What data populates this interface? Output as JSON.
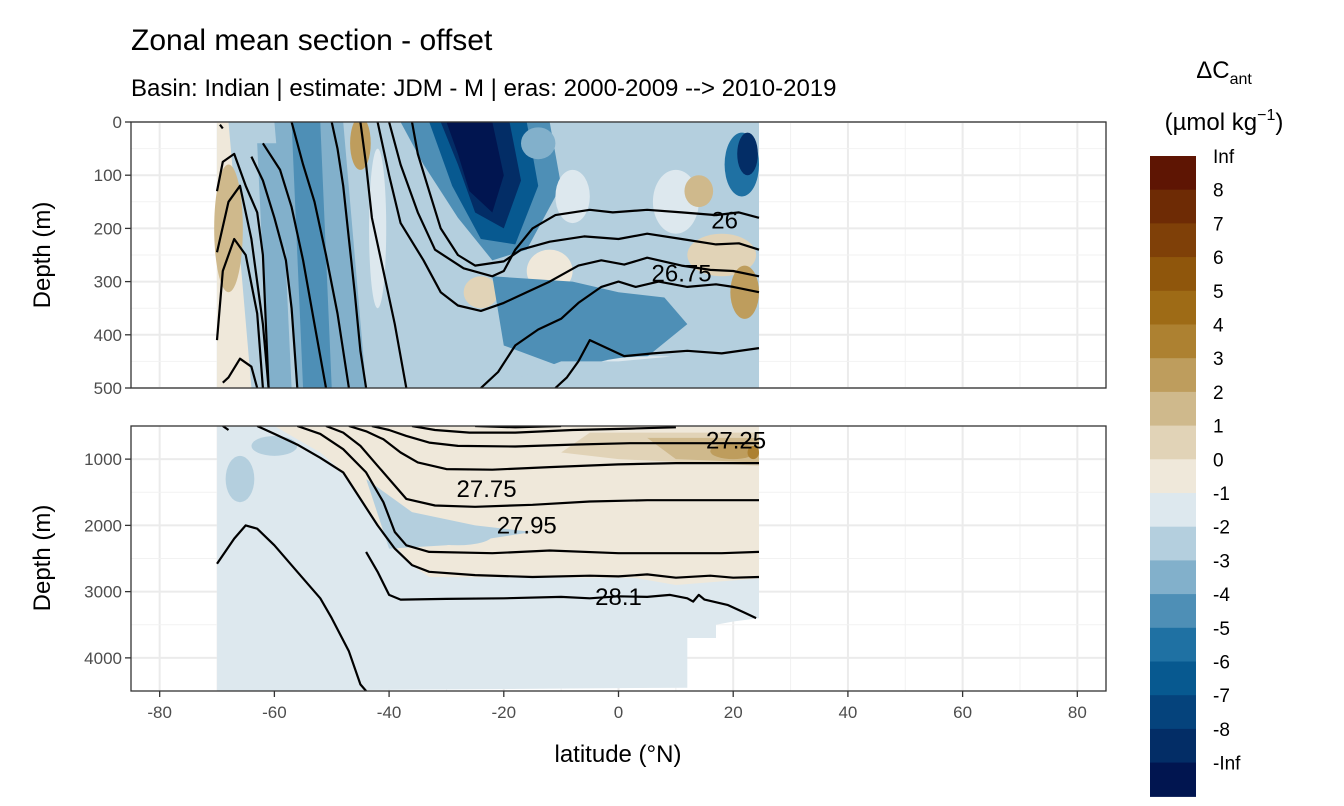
{
  "chart_data": {
    "type": "heatmap",
    "title": "Zonal mean section - offset",
    "subtitle": "Basin: Indian | estimate: JDM - M | eras: 2000-2009 --> 2010-2019",
    "xlabel": "latitude (°N)",
    "ylabel": "Depth (m)",
    "xlim": [
      -85,
      85
    ],
    "x_ticks": [
      -80,
      -60,
      -40,
      -20,
      0,
      20,
      40,
      60,
      80
    ],
    "x_tick_labels": [
      "-80",
      "-60",
      "-40",
      "-20",
      "0",
      "20",
      "40",
      "60",
      "80"
    ],
    "data_extent_lat": [
      -70,
      24.5
    ],
    "panels": [
      {
        "name": "upper",
        "ylim": [
          500,
          0
        ],
        "y_ticks": [
          0,
          100,
          200,
          300,
          400,
          500
        ],
        "y_tick_labels": [
          "0",
          "100",
          "200",
          "300",
          "400",
          "500"
        ],
        "contour_labels": [
          {
            "text": "26",
            "lat": 18.5,
            "depth": 185
          },
          {
            "text": "26.75",
            "lat": 11,
            "depth": 285
          }
        ],
        "isopycnals": [
          [
            [
              -69.5,
              5
            ],
            [
              -69,
              12
            ]
          ],
          [
            [
              -70,
              130
            ],
            [
              -69,
              75
            ],
            [
              -67,
              60
            ],
            [
              -65,
              120
            ],
            [
              -63,
              170
            ],
            [
              -62,
              250
            ],
            [
              -61,
              500
            ]
          ],
          [
            [
              -70,
              245
            ],
            [
              -68,
              150
            ],
            [
              -66,
              120
            ],
            [
              -64,
              220
            ],
            [
              -62,
              380
            ],
            [
              -61,
              500
            ]
          ],
          [
            [
              -70,
              410
            ],
            [
              -69,
              280
            ],
            [
              -67,
              220
            ],
            [
              -65,
              250
            ],
            [
              -63,
              360
            ],
            [
              -62,
              500
            ]
          ],
          [
            [
              -69,
              490
            ],
            [
              -68,
              480
            ],
            [
              -66,
              445
            ],
            [
              -64,
              460
            ],
            [
              -63,
              500
            ]
          ],
          [
            [
              -64,
              65
            ],
            [
              -62,
              110
            ],
            [
              -60,
              180
            ],
            [
              -58,
              260
            ],
            [
              -57,
              350
            ],
            [
              -56,
              500
            ]
          ],
          [
            [
              -62,
              40
            ],
            [
              -59,
              90
            ],
            [
              -57,
              160
            ],
            [
              -55,
              260
            ],
            [
              -53,
              380
            ],
            [
              -51,
              500
            ]
          ],
          [
            [
              -57,
              0
            ],
            [
              -55,
              80
            ],
            [
              -53,
              150
            ],
            [
              -51,
              250
            ],
            [
              -49,
              360
            ],
            [
              -47,
              500
            ]
          ],
          [
            [
              -50,
              0
            ],
            [
              -49,
              50
            ],
            [
              -48,
              120
            ],
            [
              -47,
              220
            ],
            [
              -46,
              320
            ],
            [
              -45,
              430
            ],
            [
              -44,
              500
            ]
          ],
          [
            [
              -45,
              0
            ],
            [
              -44,
              80
            ],
            [
              -43,
              180
            ],
            [
              -41,
              280
            ],
            [
              -39,
              380
            ],
            [
              -37,
              500
            ]
          ],
          [
            [
              -40,
              0
            ],
            [
              -38,
              80
            ],
            [
              -35,
              170
            ],
            [
              -32,
              240
            ],
            [
              -27,
              275
            ],
            [
              -22,
              290
            ],
            [
              -20,
              280
            ],
            [
              -18,
              240
            ],
            [
              -15,
              200
            ],
            [
              -11,
              175
            ],
            [
              -5,
              165
            ],
            [
              -1,
              170
            ],
            [
              5,
              165
            ],
            [
              11,
              170
            ],
            [
              17,
              175
            ],
            [
              21,
              170
            ],
            [
              24.5,
              180
            ]
          ],
          [
            [
              -36,
              0
            ],
            [
              -35,
              60
            ],
            [
              -33,
              130
            ],
            [
              -31,
              200
            ],
            [
              -28,
              250
            ],
            [
              -25,
              270
            ],
            [
              -20,
              262
            ],
            [
              -17,
              240
            ],
            [
              -12,
              225
            ],
            [
              -6,
              215
            ],
            [
              0,
              220
            ],
            [
              5,
              210
            ],
            [
              11,
              220
            ],
            [
              17,
              230
            ],
            [
              21,
              228
            ],
            [
              24.5,
              240
            ]
          ],
          [
            [
              -42,
              0
            ],
            [
              -40,
              100
            ],
            [
              -38,
              190
            ],
            [
              -34,
              260
            ],
            [
              -31,
              320
            ],
            [
              -28,
              345
            ],
            [
              -24,
              355
            ],
            [
              -20,
              340
            ],
            [
              -16,
              320
            ],
            [
              -12,
              300
            ],
            [
              -7,
              270
            ],
            [
              -3,
              260
            ],
            [
              1,
              268
            ],
            [
              5,
              255
            ],
            [
              11,
              270
            ],
            [
              16,
              278
            ],
            [
              20,
              280
            ],
            [
              24.5,
              290
            ]
          ],
          [
            [
              -24,
              500
            ],
            [
              -21,
              470
            ],
            [
              -18,
              420
            ],
            [
              -14,
              390
            ],
            [
              -10,
              370
            ],
            [
              -7,
              340
            ],
            [
              -3,
              310
            ],
            [
              0,
              300
            ],
            [
              3,
              310
            ],
            [
              7,
              300
            ],
            [
              12,
              310
            ],
            [
              17,
              305
            ],
            [
              20,
              310
            ],
            [
              24.5,
              320
            ]
          ],
          [
            [
              -11,
              500
            ],
            [
              -9,
              480
            ],
            [
              -7,
              450
            ],
            [
              -5,
              410
            ],
            [
              -2,
              425
            ],
            [
              1,
              440
            ],
            [
              6,
              435
            ],
            [
              12,
              430
            ],
            [
              18,
              435
            ],
            [
              24.5,
              425
            ]
          ]
        ]
      },
      {
        "name": "lower",
        "ylim": [
          4500,
          500
        ],
        "y_ticks": [
          1000,
          2000,
          3000,
          4000
        ],
        "y_tick_labels": [
          "1000",
          "2000",
          "3000",
          "4000"
        ],
        "contour_labels": [
          {
            "text": "27.25",
            "lat": 20.5,
            "depth": 720
          },
          {
            "text": "27.75",
            "lat": -23,
            "depth": 1450
          },
          {
            "text": "27.95",
            "lat": -16,
            "depth": 2000
          },
          {
            "text": "28.1",
            "lat": 0,
            "depth": 3080
          }
        ],
        "isopycnals": [
          [
            [
              -69,
              500
            ],
            [
              -68,
              560
            ]
          ],
          [
            [
              -63,
              500
            ],
            [
              -60,
              620
            ],
            [
              -56,
              780
            ],
            [
              -52,
              980
            ],
            [
              -48,
              1200
            ],
            [
              -45,
              1600
            ],
            [
              -42,
              2000
            ],
            [
              -39,
              2350
            ],
            [
              -36,
              2600
            ],
            [
              -33,
              2700
            ],
            [
              -25,
              2750
            ],
            [
              -15,
              2780
            ],
            [
              -5,
              2760
            ],
            [
              0,
              2770
            ],
            [
              5,
              2740
            ],
            [
              10,
              2790
            ],
            [
              16,
              2760
            ],
            [
              20,
              2790
            ],
            [
              24.5,
              2780
            ]
          ],
          [
            [
              -56,
              500
            ],
            [
              -52,
              620
            ],
            [
              -48,
              850
            ],
            [
              -44,
              1200
            ],
            [
              -41,
              1650
            ],
            [
              -39,
              2100
            ],
            [
              -37,
              2300
            ],
            [
              -33,
              2400
            ],
            [
              -22,
              2420
            ],
            [
              -12,
              2380
            ],
            [
              0,
              2420
            ],
            [
              10,
              2420
            ],
            [
              18,
              2420
            ],
            [
              24.5,
              2400
            ]
          ],
          [
            [
              -51,
              500
            ],
            [
              -48,
              600
            ],
            [
              -45,
              800
            ],
            [
              -42,
              1100
            ],
            [
              -39,
              1400
            ],
            [
              -37,
              1600
            ],
            [
              -32,
              1700
            ],
            [
              -25,
              1720
            ],
            [
              -15,
              1690
            ],
            [
              -5,
              1640
            ],
            [
              5,
              1620
            ],
            [
              15,
              1620
            ],
            [
              24.5,
              1620
            ]
          ],
          [
            [
              -47,
              500
            ],
            [
              -44,
              580
            ],
            [
              -41,
              700
            ],
            [
              -38,
              900
            ],
            [
              -35,
              1050
            ],
            [
              -30,
              1150
            ],
            [
              -22,
              1160
            ],
            [
              -12,
              1120
            ],
            [
              0,
              1080
            ],
            [
              10,
              1060
            ],
            [
              20,
              1060
            ],
            [
              24.5,
              1060
            ]
          ],
          [
            [
              -43,
              500
            ],
            [
              -40,
              560
            ],
            [
              -37,
              650
            ],
            [
              -33,
              750
            ],
            [
              -28,
              800
            ],
            [
              -18,
              810
            ],
            [
              -8,
              780
            ],
            [
              2,
              760
            ],
            [
              12,
              760
            ],
            [
              24.5,
              760
            ]
          ],
          [
            [
              -36,
              500
            ],
            [
              -32,
              560
            ],
            [
              -26,
              600
            ],
            [
              -18,
              600
            ],
            [
              -8,
              560
            ],
            [
              2,
              540
            ],
            [
              10,
              520
            ]
          ],
          [
            [
              -25,
              500
            ],
            [
              -18,
              520
            ],
            [
              -10,
              500
            ]
          ],
          [
            [
              -70,
              2580
            ],
            [
              -67,
              2200
            ],
            [
              -65,
              2000
            ],
            [
              -63,
              2050
            ],
            [
              -60,
              2300
            ],
            [
              -56,
              2700
            ],
            [
              -52,
              3100
            ],
            [
              -50,
              3400
            ],
            [
              -47,
              3900
            ],
            [
              -45,
              4400
            ],
            [
              -44,
              4500
            ]
          ],
          [
            [
              -44,
              2400
            ],
            [
              -42,
              2700
            ],
            [
              -40,
              3050
            ],
            [
              -38,
              3120
            ],
            [
              -30,
              3110
            ],
            [
              -20,
              3100
            ],
            [
              -10,
              3080
            ],
            [
              -5,
              3100
            ],
            [
              0,
              3070
            ],
            [
              5,
              3080
            ],
            [
              9,
              3050
            ],
            [
              12,
              3100
            ],
            [
              13,
              3150
            ],
            [
              14,
              3050
            ],
            [
              15,
              3120
            ],
            [
              19,
              3200
            ],
            [
              22,
              3320
            ],
            [
              24,
              3400
            ]
          ]
        ]
      }
    ],
    "legend": {
      "title": "ΔC",
      "title_sub": "ant",
      "units_prefix": "(µmol kg",
      "units_sup": "−1",
      "units_suffix": ")",
      "position": "right",
      "labels": [
        "Inf",
        "8",
        "7",
        "6",
        "5",
        "4",
        "3",
        "2",
        "1",
        "0",
        "-1",
        "-2",
        "-3",
        "-4",
        "-5",
        "-6",
        "-7",
        "-8",
        "-Inf"
      ],
      "colors": [
        "#5e1503",
        "#6e2b05",
        "#7f4008",
        "#8f560c",
        "#9e6b16",
        "#ad8131",
        "#be9d5d",
        "#cfb98c",
        "#e1d3b7",
        "#efe8da",
        "#dde8ee",
        "#b4cfde",
        "#82b0cb",
        "#4e8fb6",
        "#1f71a3",
        "#075990",
        "#05437c",
        "#032d66",
        "#011550"
      ]
    }
  }
}
